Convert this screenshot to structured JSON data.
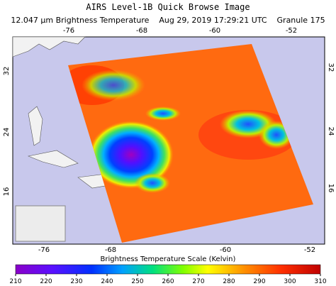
{
  "header": {
    "title": "AIRS Level-1B Quick Browse Image",
    "subtitle": "12.047 µm Brightness Temperature    Aug 29, 2019 17:29:21 UTC    Granule 175"
  },
  "map": {
    "top_lon_labels": [
      "-76",
      "-68",
      "-60",
      "-52"
    ],
    "bottom_lon_labels": [
      "-76",
      "-68",
      "-60",
      "-52"
    ],
    "left_lat_labels": [
      "32",
      "24",
      "16"
    ],
    "right_lat_labels": [
      "32",
      "24",
      "16"
    ]
  },
  "colorbar": {
    "label": "Brightness Temperature Scale (Kelvin)",
    "ticks": [
      210,
      220,
      230,
      240,
      250,
      260,
      270,
      280,
      290,
      300,
      310
    ]
  }
}
